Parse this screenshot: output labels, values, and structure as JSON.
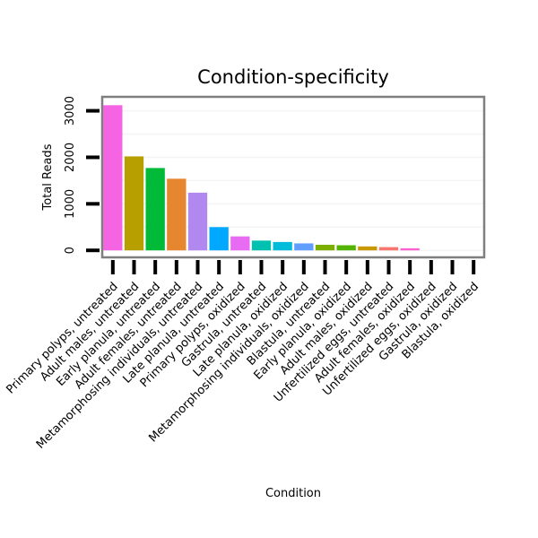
{
  "chart_data": {
    "type": "bar",
    "title": "Condition-specificity",
    "xlabel": "Condition",
    "ylabel": "Total Reads",
    "ylim": [
      -150,
      3300
    ],
    "yticks": [
      0,
      1000,
      2000,
      3000
    ],
    "categories": [
      "Primary polyps, untreated",
      "Adult males, untreated",
      "Early planula, untreated",
      "Adult females, untreated",
      "Metamorphosing individuals, untreated",
      "Late planula, untreated",
      "Primary polyps, oxidized",
      "Gastrula, untreated",
      "Late planula, oxidized",
      "Metamorphosing individuals, oxidized",
      "Blastula, untreated",
      "Early planula, oxidized",
      "Adult males, oxidized",
      "Unfertilized eggs, untreated",
      "Adult females, oxidized",
      "Unfertilized eggs, oxidized",
      "Gastrula, oxidized",
      "Blastula, oxidized"
    ],
    "values": [
      3120,
      2020,
      1770,
      1540,
      1240,
      500,
      300,
      210,
      180,
      150,
      120,
      110,
      85,
      70,
      45,
      0,
      0,
      0
    ],
    "colors": [
      "#f564e3",
      "#b79f00",
      "#00ba38",
      "#e6862f",
      "#b088f0",
      "#00a9ff",
      "#e76bf3",
      "#00c0af",
      "#00bcd8",
      "#619cff",
      "#7cae00",
      "#53b400",
      "#c99800",
      "#f8766d",
      "#fd61d1",
      "#00b6eb",
      "#00c094",
      "#a3a500"
    ],
    "grid": true,
    "legend": "none"
  }
}
